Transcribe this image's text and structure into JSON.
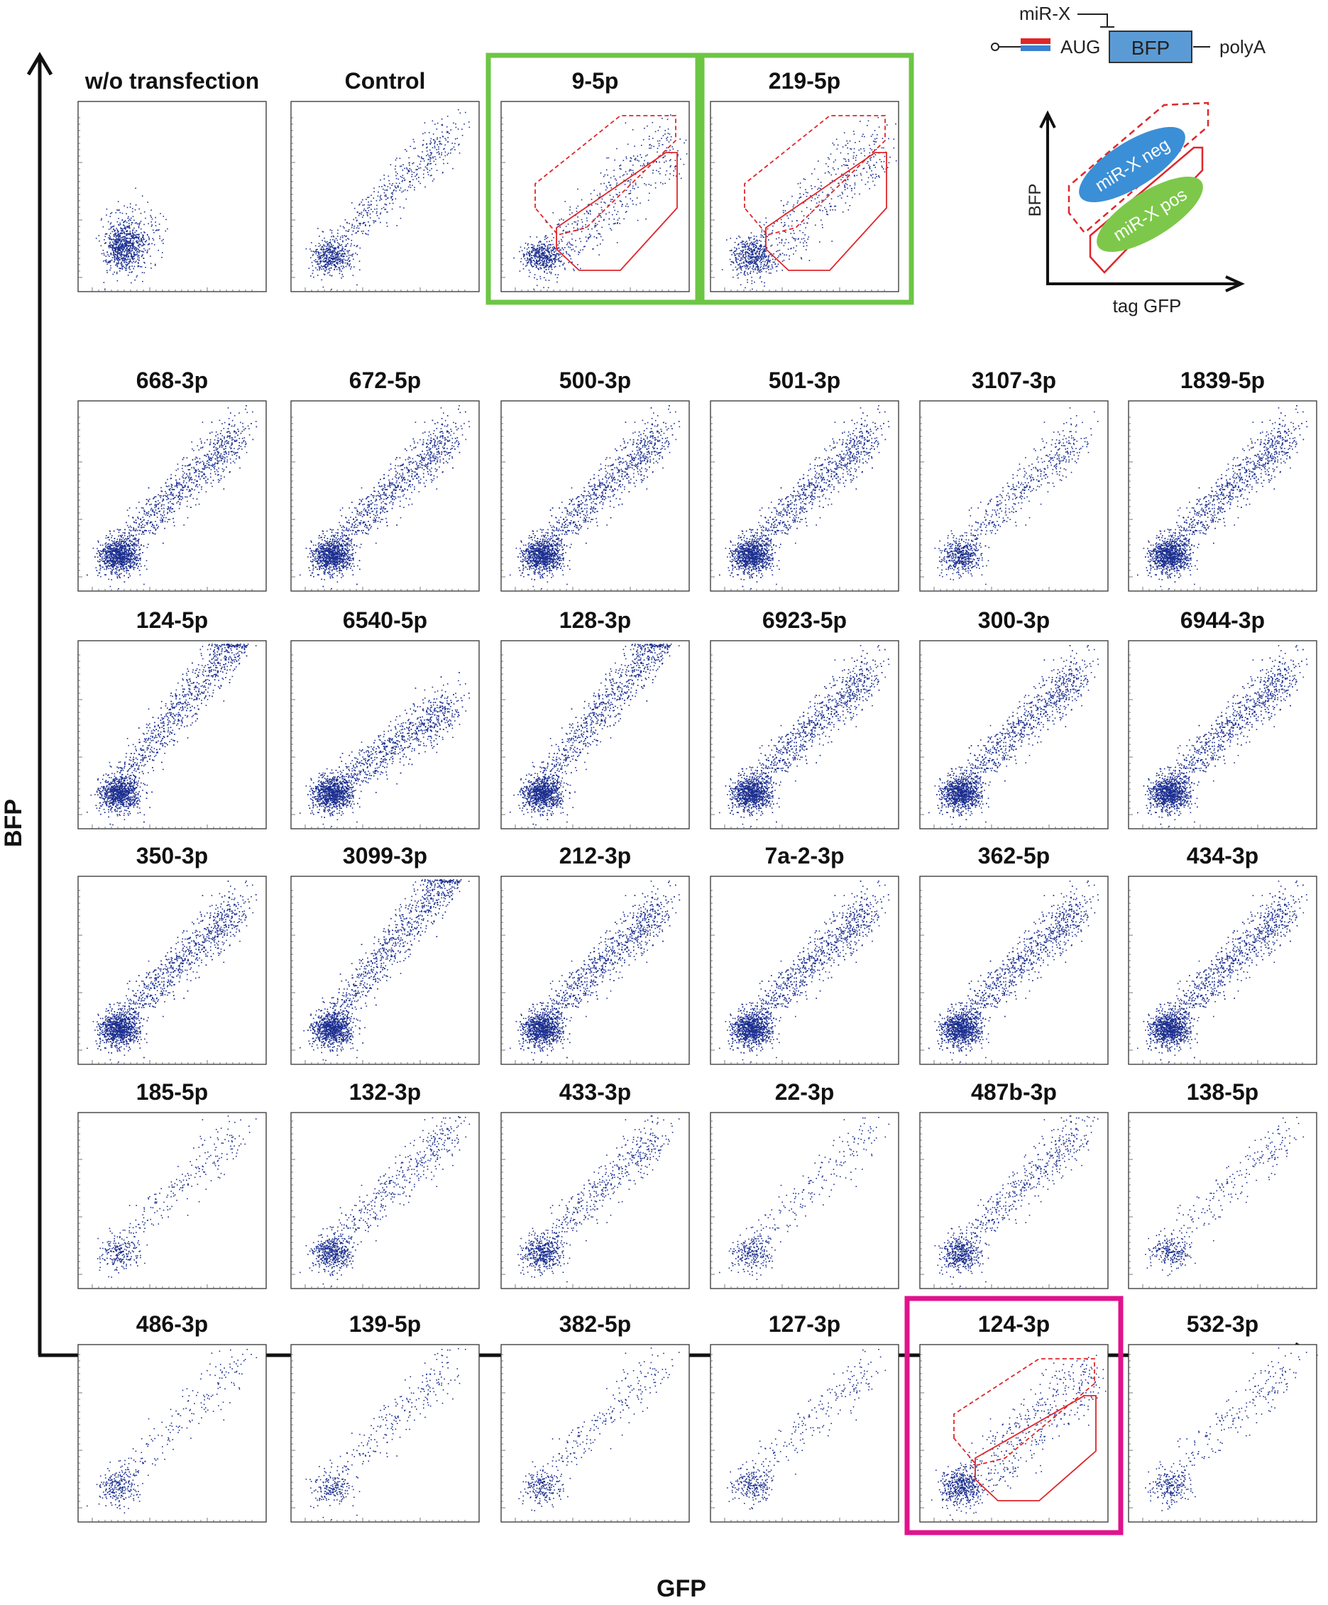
{
  "axes": {
    "x_label": "GFP",
    "y_label": "BFP"
  },
  "colors": {
    "dots": "#1c2f8f",
    "gate": "#e0262a",
    "highlight_green": "#6cc644",
    "highlight_magenta": "#e0138c",
    "legend_blue": "#3b8fd6",
    "legend_green": "#7dc84a"
  },
  "schematic": {
    "mirna_label": "miR-X",
    "aug_label": "AUG",
    "bfp_box_label": "BFP",
    "polya_label": "polyA",
    "plot_ylabel": "BFP",
    "plot_xlabel": "tag GFP",
    "neg_label": "miR-X neg",
    "pos_label": "miR-X pos"
  },
  "chart_data": {
    "type": "scatter",
    "x_axis": "GFP",
    "y_axis": "BFP",
    "scale": "log",
    "panels": [
      {
        "title": "w/o transfection",
        "row": 0,
        "col": 0,
        "pattern": "blob",
        "density": "medium"
      },
      {
        "title": "Control",
        "row": 0,
        "col": 1,
        "pattern": "diagonal",
        "density": "medium"
      },
      {
        "title": "9-5p",
        "row": 0,
        "col": 2,
        "pattern": "split",
        "density": "medium",
        "gated": true,
        "highlight": "green"
      },
      {
        "title": "219-5p",
        "row": 0,
        "col": 3,
        "pattern": "split",
        "density": "medium",
        "gated": true,
        "highlight": "green"
      },
      {
        "title": "668-3p",
        "row": 1,
        "col": 0,
        "pattern": "diagonal",
        "density": "high"
      },
      {
        "title": "672-5p",
        "row": 1,
        "col": 1,
        "pattern": "diagonal",
        "density": "high"
      },
      {
        "title": "500-3p",
        "row": 1,
        "col": 2,
        "pattern": "diagonal",
        "density": "high"
      },
      {
        "title": "501-3p",
        "row": 1,
        "col": 3,
        "pattern": "diagonal",
        "density": "high"
      },
      {
        "title": "3107-3p",
        "row": 1,
        "col": 4,
        "pattern": "diagonal",
        "density": "medium"
      },
      {
        "title": "1839-5p",
        "row": 1,
        "col": 5,
        "pattern": "diagonal",
        "density": "high"
      },
      {
        "title": "124-5p",
        "row": 2,
        "col": 0,
        "pattern": "steep",
        "density": "high"
      },
      {
        "title": "6540-5p",
        "row": 2,
        "col": 1,
        "pattern": "shallow",
        "density": "high"
      },
      {
        "title": "128-3p",
        "row": 2,
        "col": 2,
        "pattern": "steep",
        "density": "high"
      },
      {
        "title": "6923-5p",
        "row": 2,
        "col": 3,
        "pattern": "diagonal",
        "density": "high"
      },
      {
        "title": "300-3p",
        "row": 2,
        "col": 4,
        "pattern": "diagonal",
        "density": "high"
      },
      {
        "title": "6944-3p",
        "row": 2,
        "col": 5,
        "pattern": "diagonal",
        "density": "high"
      },
      {
        "title": "350-3p",
        "row": 3,
        "col": 0,
        "pattern": "diagonal",
        "density": "high"
      },
      {
        "title": "3099-3p",
        "row": 3,
        "col": 1,
        "pattern": "steep",
        "density": "high"
      },
      {
        "title": "212-3p",
        "row": 3,
        "col": 2,
        "pattern": "diagonal",
        "density": "high"
      },
      {
        "title": "7a-2-3p",
        "row": 3,
        "col": 3,
        "pattern": "diagonal",
        "density": "high"
      },
      {
        "title": "362-5p",
        "row": 3,
        "col": 4,
        "pattern": "diagonal",
        "density": "high"
      },
      {
        "title": "434-3p",
        "row": 3,
        "col": 5,
        "pattern": "diagonal",
        "density": "high"
      },
      {
        "title": "185-5p",
        "row": 4,
        "col": 0,
        "pattern": "diagonal",
        "density": "low"
      },
      {
        "title": "132-3p",
        "row": 4,
        "col": 1,
        "pattern": "diagonal",
        "density": "medium"
      },
      {
        "title": "433-3p",
        "row": 4,
        "col": 2,
        "pattern": "diagonal",
        "density": "medium"
      },
      {
        "title": "22-3p",
        "row": 4,
        "col": 3,
        "pattern": "diagonal",
        "density": "low"
      },
      {
        "title": "487b-3p",
        "row": 4,
        "col": 4,
        "pattern": "diagonal",
        "density": "medium"
      },
      {
        "title": "138-5p",
        "row": 4,
        "col": 5,
        "pattern": "diagonal",
        "density": "low"
      },
      {
        "title": "486-3p",
        "row": 5,
        "col": 0,
        "pattern": "diagonal",
        "density": "low"
      },
      {
        "title": "139-5p",
        "row": 5,
        "col": 1,
        "pattern": "diagonal",
        "density": "low"
      },
      {
        "title": "382-5p",
        "row": 5,
        "col": 2,
        "pattern": "diagonal",
        "density": "low"
      },
      {
        "title": "127-3p",
        "row": 5,
        "col": 3,
        "pattern": "diagonal",
        "density": "low"
      },
      {
        "title": "124-3p",
        "row": 5,
        "col": 4,
        "pattern": "split",
        "density": "medium",
        "gated": true,
        "highlight": "magenta"
      },
      {
        "title": "532-3p",
        "row": 5,
        "col": 5,
        "pattern": "diagonal",
        "density": "low"
      }
    ]
  }
}
